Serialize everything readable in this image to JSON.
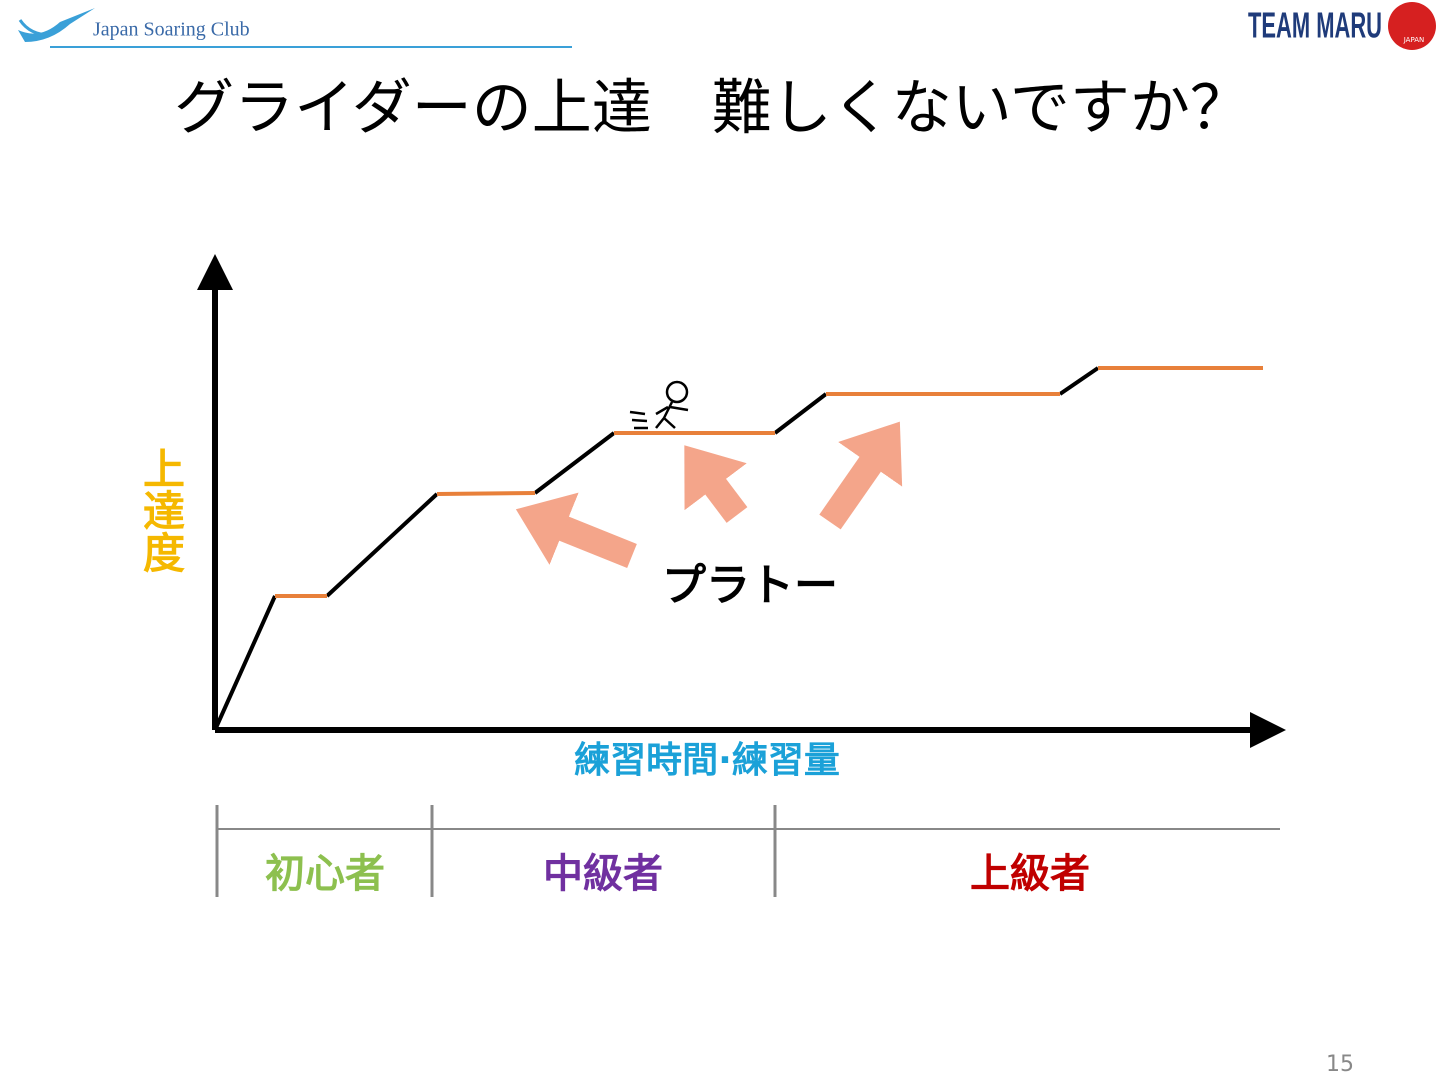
{
  "header": {
    "logo_left": "Japan Soaring Club",
    "logo_right": "TEAM MARU",
    "logo_right_sub": "JAPAN"
  },
  "title": "グライダーの上達　難しくないですか？",
  "diagram": {
    "y_axis_label": "上達度",
    "x_axis_label": "練習時間·練習量",
    "plateau_label": "プラトー"
  },
  "stages": [
    "初心者",
    "中級者",
    "上級者"
  ],
  "page_number": "15"
}
